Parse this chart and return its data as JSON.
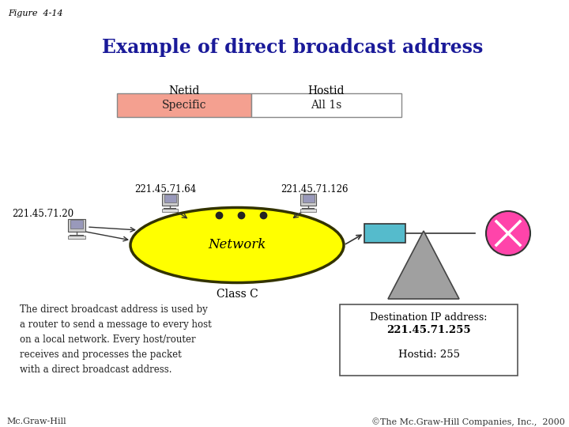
{
  "title": "Example of direct broadcast address",
  "figure_label": "Figure  4-14",
  "bg_color": "#ffffff",
  "title_color": "#1a1a99",
  "title_fontsize": 17,
  "netid_label": "Netid",
  "hostid_label": "Hostid",
  "specific_label": "Specific",
  "all1s_label": "All 1s",
  "specific_color": "#F4A090",
  "all1s_color": "#ffffff",
  "box_border_color": "#888888",
  "network_label": "Network",
  "network_color": "#FFFF00",
  "network_border": "#333300",
  "class_c_label": "Class C",
  "ip_left": "221.45.71.20",
  "ip_top_left": "221.45.71.64",
  "ip_top_right": "221.45.71.126",
  "desc_text": "The direct broadcast address is used by\na router to send a message to every host\non a local network. Every host/router\nreceives and processes the packet\nwith a direct broadcast address.",
  "router_color": "#55BBCC",
  "triangle_color_top": "#C8C8C8",
  "triangle_color_bot": "#808080",
  "circle_color": "#FF44AA",
  "x_color": "#ffffff",
  "footer_left": "Mc.Graw-Hill",
  "footer_right": "©The Mc.Graw-Hill Companies, Inc.,  2000",
  "footer_fontsize": 8
}
